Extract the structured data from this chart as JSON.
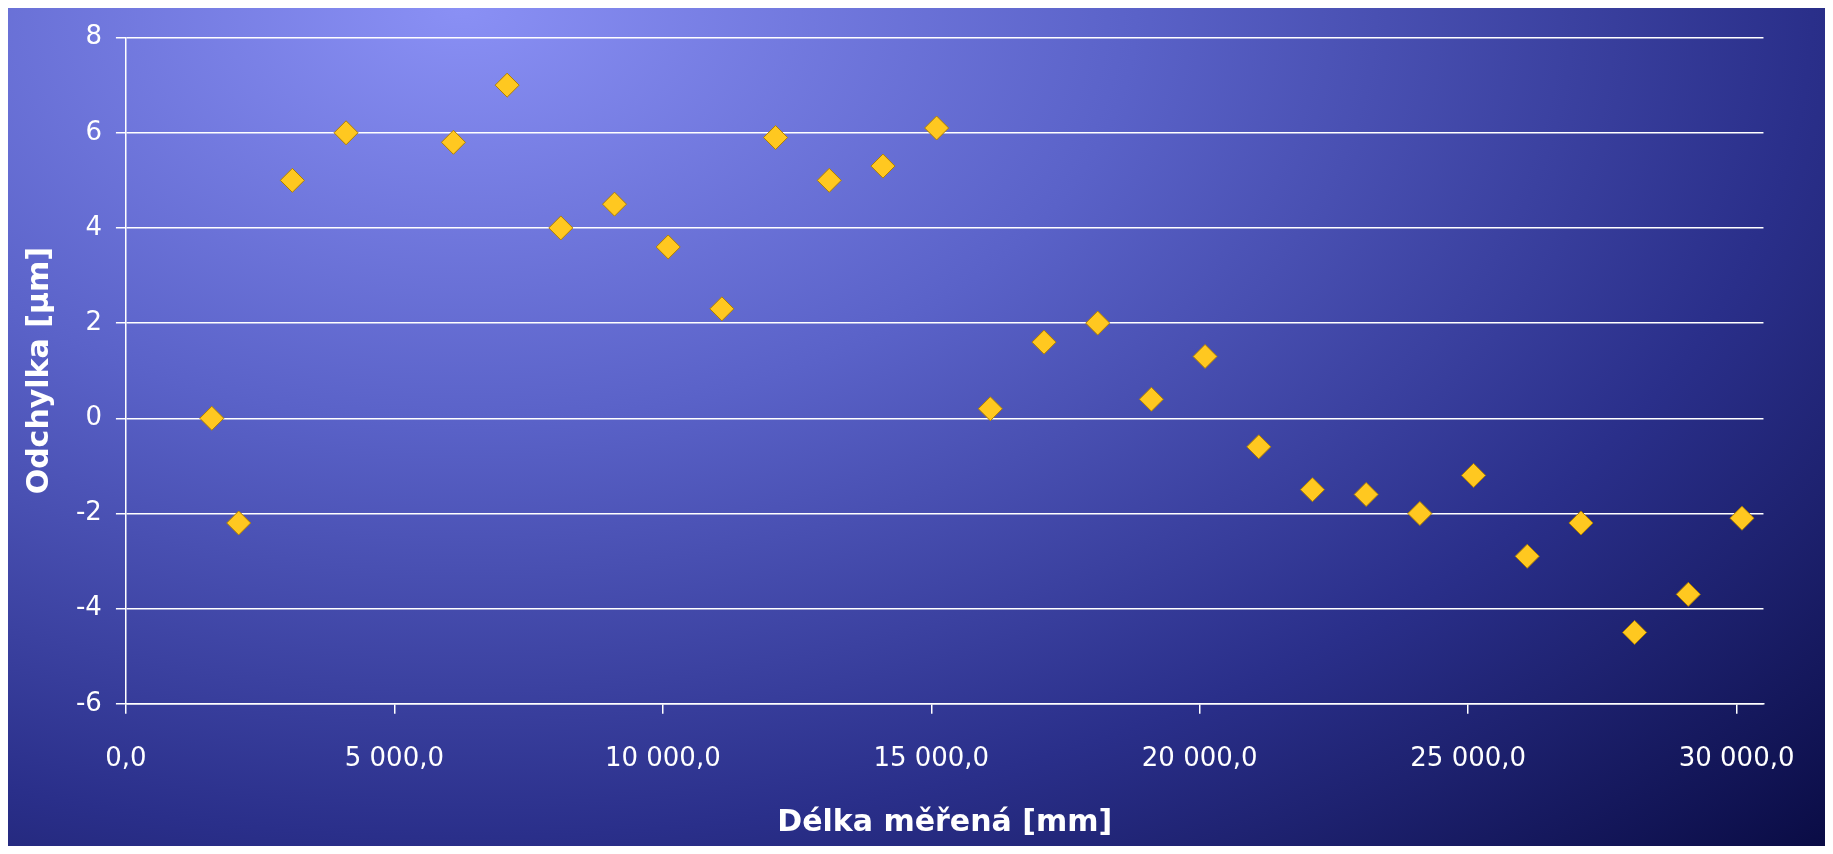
{
  "chart_data": {
    "type": "scatter",
    "xlabel": "Délka měřená [mm]",
    "ylabel": "Odchylka [µm]",
    "xlim": [
      0,
      30500
    ],
    "ylim": [
      -6,
      8
    ],
    "xticks": [
      {
        "value": 0,
        "label": "0,0"
      },
      {
        "value": 5000,
        "label": "5 000,0"
      },
      {
        "value": 10000,
        "label": "10 000,0"
      },
      {
        "value": 15000,
        "label": "15 000,0"
      },
      {
        "value": 20000,
        "label": "20 000,0"
      },
      {
        "value": 25000,
        "label": "25 000,0"
      },
      {
        "value": 30000,
        "label": "30 000,0"
      }
    ],
    "yticks": [
      -6,
      -4,
      -2,
      0,
      2,
      4,
      6,
      8
    ],
    "grid": "y",
    "marker": "diamond",
    "legend": false,
    "series": [
      {
        "color": "#ffc820",
        "x": [
          1600,
          2100,
          3100,
          4100,
          6100,
          7100,
          8100,
          9100,
          10100,
          11100,
          12100,
          13100,
          14100,
          15100,
          16100,
          17100,
          18100,
          19100,
          20100,
          21100,
          22100,
          23100,
          24100,
          25100,
          26100,
          27100,
          28100,
          29100,
          30100
        ],
        "values": [
          0.0,
          -2.2,
          5.0,
          6.0,
          5.8,
          7.0,
          4.0,
          4.5,
          3.6,
          2.3,
          5.9,
          5.0,
          5.3,
          6.1,
          0.2,
          1.6,
          2.0,
          0.4,
          1.3,
          -0.6,
          -1.5,
          -1.6,
          -2.0,
          -1.2,
          -2.9,
          -2.2,
          -4.5,
          -3.7,
          -2.1
        ]
      }
    ]
  }
}
